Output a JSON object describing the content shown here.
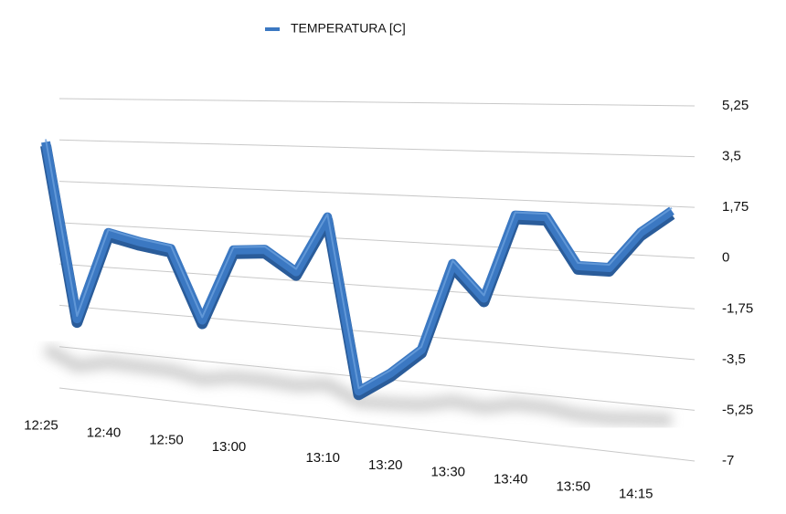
{
  "chart_data": {
    "type": "line",
    "categories": [
      "12:25",
      null,
      "12:40",
      null,
      "12:50",
      null,
      "13:00",
      null,
      null,
      "13:10",
      null,
      "13:20",
      null,
      "13:30",
      null,
      "13:40",
      null,
      "13:50",
      null,
      "14:15",
      null
    ],
    "series": [
      {
        "name": "TEMPERATURA [C]",
        "color": "#3b78c2",
        "values": [
          3.4,
          -4.0,
          -0.3,
          -0.6,
          -0.8,
          -3.6,
          -0.7,
          -0.6,
          -1.4,
          0.8,
          -5.8,
          -5.0,
          -4.0,
          -0.7,
          -1.9,
          1.2,
          1.2,
          -0.5,
          -0.5,
          0.8,
          1.6
        ]
      }
    ],
    "ylim": [
      -7,
      5.25
    ],
    "yticks": [
      {
        "value": 5.25,
        "label": "5,25"
      },
      {
        "value": 3.5,
        "label": "3,5"
      },
      {
        "value": 1.75,
        "label": "1,75"
      },
      0,
      {
        "value": -1.75,
        "label": "-1,75"
      },
      {
        "value": -3.5,
        "label": "-3,5"
      },
      {
        "value": -5.25,
        "label": "-5,25"
      },
      -7
    ],
    "grid": true,
    "legend": "top"
  }
}
